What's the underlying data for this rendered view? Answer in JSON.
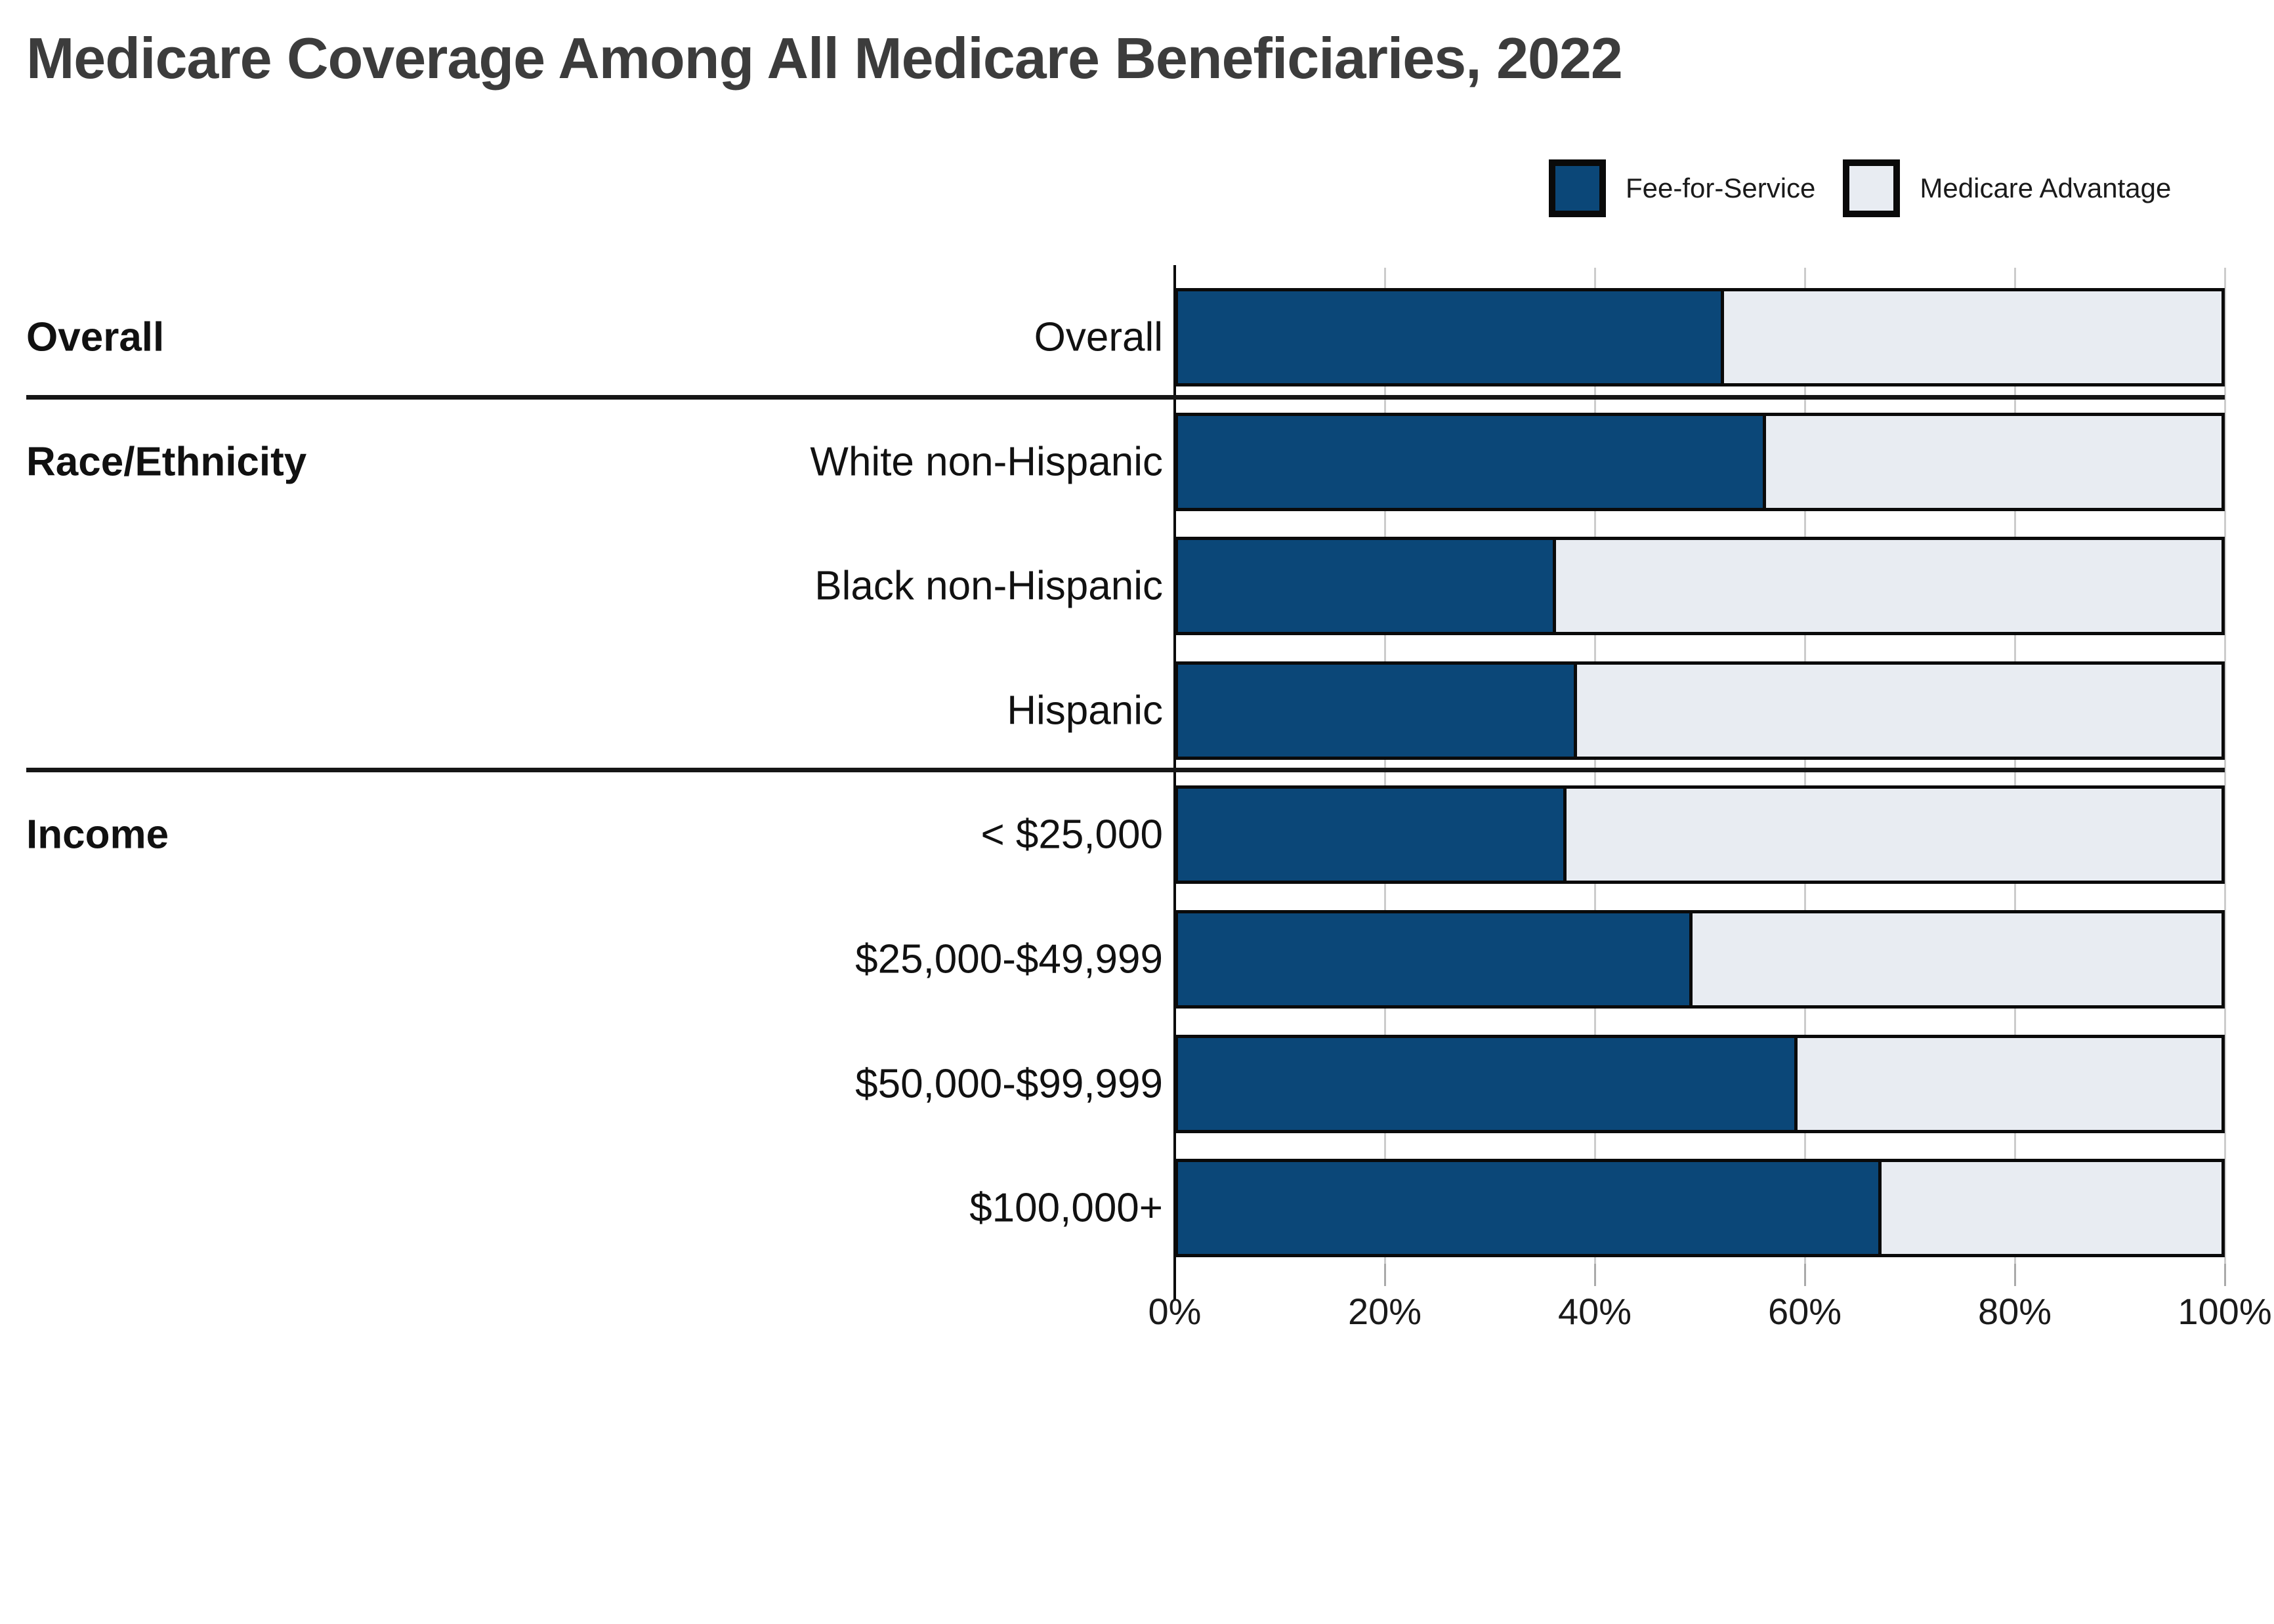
{
  "title": "Medicare Coverage Among All Medicare Beneficiaries, 2022",
  "chart_data": {
    "type": "bar",
    "orientation": "horizontal",
    "stacked": true,
    "title": "Medicare Coverage Among All Medicare Beneficiaries, 2022",
    "xlim": [
      0,
      100
    ],
    "grid": "vertical-light",
    "legend_position": "top-right",
    "x_tick_labels": [
      "0%",
      "20%",
      "40%",
      "60%",
      "80%",
      "100%"
    ],
    "x_tick_values": [
      0,
      20,
      40,
      60,
      80,
      100
    ],
    "legend": [
      {
        "name": "Fee-for-Service",
        "color": "#0b4778"
      },
      {
        "name": "Medicare Advantage",
        "color": "#e8ecf2"
      }
    ],
    "categories": [
      "Overall",
      "White non-Hispanic",
      "Black non-Hispanic",
      "Hispanic",
      "< $25,000",
      "$25,000-$49,999",
      "$50,000-$99,999",
      "$100,000+"
    ],
    "series": [
      {
        "name": "Fee-for-Service",
        "values": [
          52,
          56,
          36,
          38,
          37,
          49,
          59,
          67
        ]
      },
      {
        "name": "Medicare Advantage",
        "values": [
          48,
          44,
          64,
          62,
          63,
          51,
          41,
          33
        ]
      }
    ],
    "groups": [
      {
        "label": "Overall",
        "first_row": 0,
        "rows": [
          0
        ]
      },
      {
        "label": "Race/Ethnicity",
        "first_row": 1,
        "rows": [
          1,
          2,
          3
        ]
      },
      {
        "label": "Income",
        "first_row": 4,
        "rows": [
          4,
          5,
          6,
          7
        ]
      }
    ],
    "colors": {
      "fee_for_service": "#0b4778",
      "medicare_advantage": "#e8ecf2",
      "bar_outline": "#0a0a0a",
      "gridline": "#cccccc",
      "title_text": "#3c3c3c"
    }
  }
}
